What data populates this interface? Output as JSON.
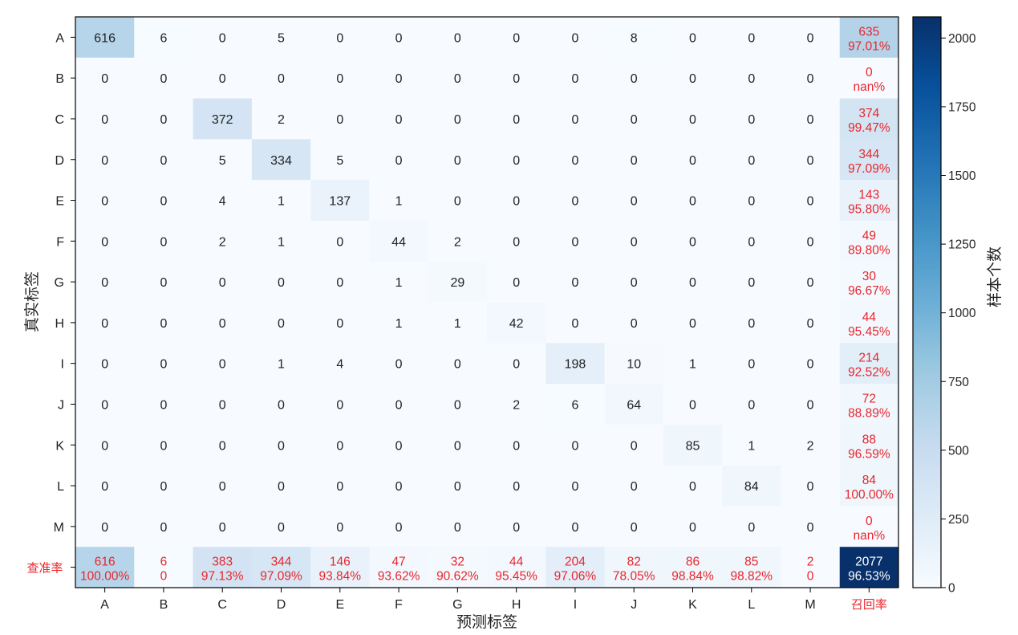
{
  "chart_data": {
    "type": "heatmap",
    "xlabel": "预测标签",
    "ylabel": "真实标签",
    "colorbar_label": "样本个数",
    "x_categories": [
      "A",
      "B",
      "C",
      "D",
      "E",
      "F",
      "G",
      "H",
      "I",
      "J",
      "K",
      "L",
      "M",
      "召回率"
    ],
    "y_categories": [
      "A",
      "B",
      "C",
      "D",
      "E",
      "F",
      "G",
      "H",
      "I",
      "J",
      "K",
      "L",
      "M",
      "查准率"
    ],
    "matrix": [
      [
        616,
        6,
        0,
        5,
        0,
        0,
        0,
        0,
        0,
        8,
        0,
        0,
        0
      ],
      [
        0,
        0,
        0,
        0,
        0,
        0,
        0,
        0,
        0,
        0,
        0,
        0,
        0
      ],
      [
        0,
        0,
        372,
        2,
        0,
        0,
        0,
        0,
        0,
        0,
        0,
        0,
        0
      ],
      [
        0,
        0,
        5,
        334,
        5,
        0,
        0,
        0,
        0,
        0,
        0,
        0,
        0
      ],
      [
        0,
        0,
        4,
        1,
        137,
        1,
        0,
        0,
        0,
        0,
        0,
        0,
        0
      ],
      [
        0,
        0,
        2,
        1,
        0,
        44,
        2,
        0,
        0,
        0,
        0,
        0,
        0
      ],
      [
        0,
        0,
        0,
        0,
        0,
        1,
        29,
        0,
        0,
        0,
        0,
        0,
        0
      ],
      [
        0,
        0,
        0,
        0,
        0,
        1,
        1,
        42,
        0,
        0,
        0,
        0,
        0
      ],
      [
        0,
        0,
        0,
        1,
        4,
        0,
        0,
        0,
        198,
        10,
        1,
        0,
        0
      ],
      [
        0,
        0,
        0,
        0,
        0,
        0,
        0,
        2,
        6,
        64,
        0,
        0,
        0
      ],
      [
        0,
        0,
        0,
        0,
        0,
        0,
        0,
        0,
        0,
        0,
        85,
        1,
        2
      ],
      [
        0,
        0,
        0,
        0,
        0,
        0,
        0,
        0,
        0,
        0,
        0,
        84,
        0
      ],
      [
        0,
        0,
        0,
        0,
        0,
        0,
        0,
        0,
        0,
        0,
        0,
        0,
        0
      ]
    ],
    "recall_column": [
      {
        "count": 635,
        "rate": "97.01%"
      },
      {
        "count": 0,
        "rate": "nan%"
      },
      {
        "count": 374,
        "rate": "99.47%"
      },
      {
        "count": 344,
        "rate": "97.09%"
      },
      {
        "count": 143,
        "rate": "95.80%"
      },
      {
        "count": 49,
        "rate": "89.80%"
      },
      {
        "count": 30,
        "rate": "96.67%"
      },
      {
        "count": 44,
        "rate": "95.45%"
      },
      {
        "count": 214,
        "rate": "92.52%"
      },
      {
        "count": 72,
        "rate": "88.89%"
      },
      {
        "count": 88,
        "rate": "96.59%"
      },
      {
        "count": 84,
        "rate": "100.00%"
      },
      {
        "count": 0,
        "rate": "nan%"
      }
    ],
    "precision_row": [
      {
        "count": 616,
        "rate": "100.00%"
      },
      {
        "count": 6,
        "rate": "0"
      },
      {
        "count": 383,
        "rate": "97.13%"
      },
      {
        "count": 344,
        "rate": "97.09%"
      },
      {
        "count": 146,
        "rate": "93.84%"
      },
      {
        "count": 47,
        "rate": "93.62%"
      },
      {
        "count": 32,
        "rate": "90.62%"
      },
      {
        "count": 44,
        "rate": "95.45%"
      },
      {
        "count": 204,
        "rate": "97.06%"
      },
      {
        "count": 82,
        "rate": "78.05%"
      },
      {
        "count": 86,
        "rate": "98.84%"
      },
      {
        "count": 85,
        "rate": "98.82%"
      },
      {
        "count": 2,
        "rate": "0"
      }
    ],
    "total": {
      "count": 2077,
      "rate": "96.53%"
    },
    "colorbar_range": [
      0,
      2077
    ],
    "colorbar_ticks": [
      0,
      250,
      500,
      750,
      1000,
      1250,
      1500,
      1750,
      2000
    ],
    "colormap": [
      "#f7fbff",
      "#deebf7",
      "#c6dbef",
      "#9ecae1",
      "#6baed6",
      "#4292c6",
      "#2171b5",
      "#08519c",
      "#08306b"
    ],
    "summary_text_color": "#e8262d",
    "cell_text_color": "#222222"
  }
}
